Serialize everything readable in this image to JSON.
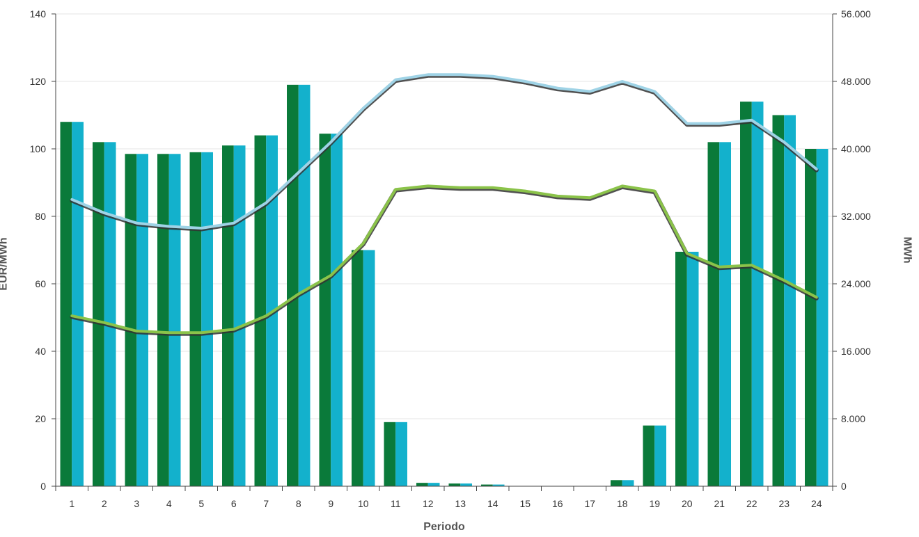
{
  "chart_data": {
    "type": "bar",
    "title": "",
    "xlabel": "Periodo",
    "ylabel_left": "EUR/MWh",
    "ylabel_right": "MWh",
    "categories": [
      "1",
      "2",
      "3",
      "4",
      "5",
      "6",
      "7",
      "8",
      "9",
      "10",
      "11",
      "12",
      "13",
      "14",
      "15",
      "16",
      "17",
      "18",
      "19",
      "20",
      "21",
      "22",
      "23",
      "24"
    ],
    "ylim_left": [
      0,
      140
    ],
    "ylim_right": [
      0,
      56000
    ],
    "yticks_left": [
      "0",
      "20",
      "40",
      "60",
      "80",
      "100",
      "120",
      "140"
    ],
    "yticks_right": [
      "0",
      "8.000",
      "16.000",
      "24.000",
      "32.000",
      "40.000",
      "48.000",
      "56.000"
    ],
    "grid": true,
    "bar_series": [
      {
        "color": "#0a7a3a",
        "axis": "left",
        "values": [
          108,
          102,
          98.5,
          98.5,
          99,
          101,
          104,
          119,
          104.5,
          70,
          19,
          1,
          0.8,
          0.5,
          0,
          0,
          0,
          1.8,
          18,
          69.5,
          102,
          114,
          110,
          100
        ]
      },
      {
        "color": "#13b1cc",
        "axis": "left",
        "values": [
          108,
          102,
          98.5,
          98.5,
          99,
          101,
          104,
          119,
          104.5,
          70,
          19,
          1,
          0.8,
          0.5,
          0,
          0,
          0,
          1.8,
          18,
          69.5,
          102,
          114,
          110,
          100
        ]
      }
    ],
    "line_series": [
      {
        "color": "#9fd3e6",
        "axis": "left",
        "values": [
          85,
          81,
          78,
          77,
          76.5,
          78,
          84,
          93,
          102,
          112,
          120.5,
          122,
          122,
          121.5,
          120,
          118,
          117,
          120,
          117,
          107.5,
          107.5,
          108.5,
          102,
          94
        ]
      },
      {
        "color": "#8bc34a",
        "axis": "left",
        "values": [
          50.5,
          48.5,
          46,
          45.5,
          45.5,
          46.5,
          50.5,
          57,
          62.5,
          72,
          88,
          89,
          88.5,
          88.5,
          87.5,
          86,
          85.5,
          89,
          87.5,
          69,
          65,
          65.5,
          61,
          56
        ]
      }
    ]
  }
}
